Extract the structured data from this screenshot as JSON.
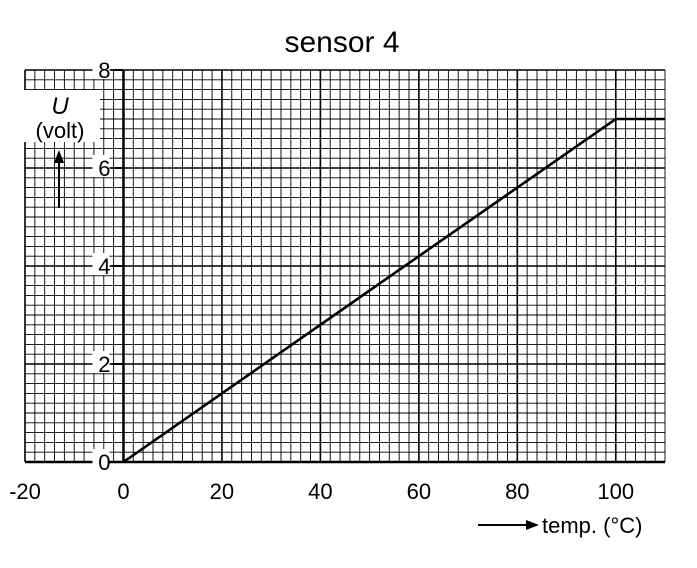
{
  "chart_data": {
    "type": "line",
    "title": "sensor 4",
    "ylabel_symbol": "U",
    "ylabel_unit": "(volt)",
    "xlabel": "temp. (°C)",
    "xlim": [
      -20,
      110
    ],
    "ylim": [
      0,
      8
    ],
    "x_ticks": [
      -20,
      0,
      20,
      40,
      60,
      80,
      100
    ],
    "x_tick_labels": [
      "-20",
      "0",
      "20",
      "40",
      "60",
      "80",
      "100"
    ],
    "y_ticks": [
      0,
      2,
      4,
      6,
      8
    ],
    "y_tick_labels": [
      "0",
      "2",
      "4",
      "6",
      "8"
    ],
    "grid": true,
    "minor_grid_step_x": 2,
    "minor_grid_step_y": 0.2,
    "series": [
      {
        "points": [
          [
            0,
            0
          ],
          [
            100,
            7
          ],
          [
            110,
            7
          ]
        ],
        "color": "#000000"
      }
    ]
  }
}
